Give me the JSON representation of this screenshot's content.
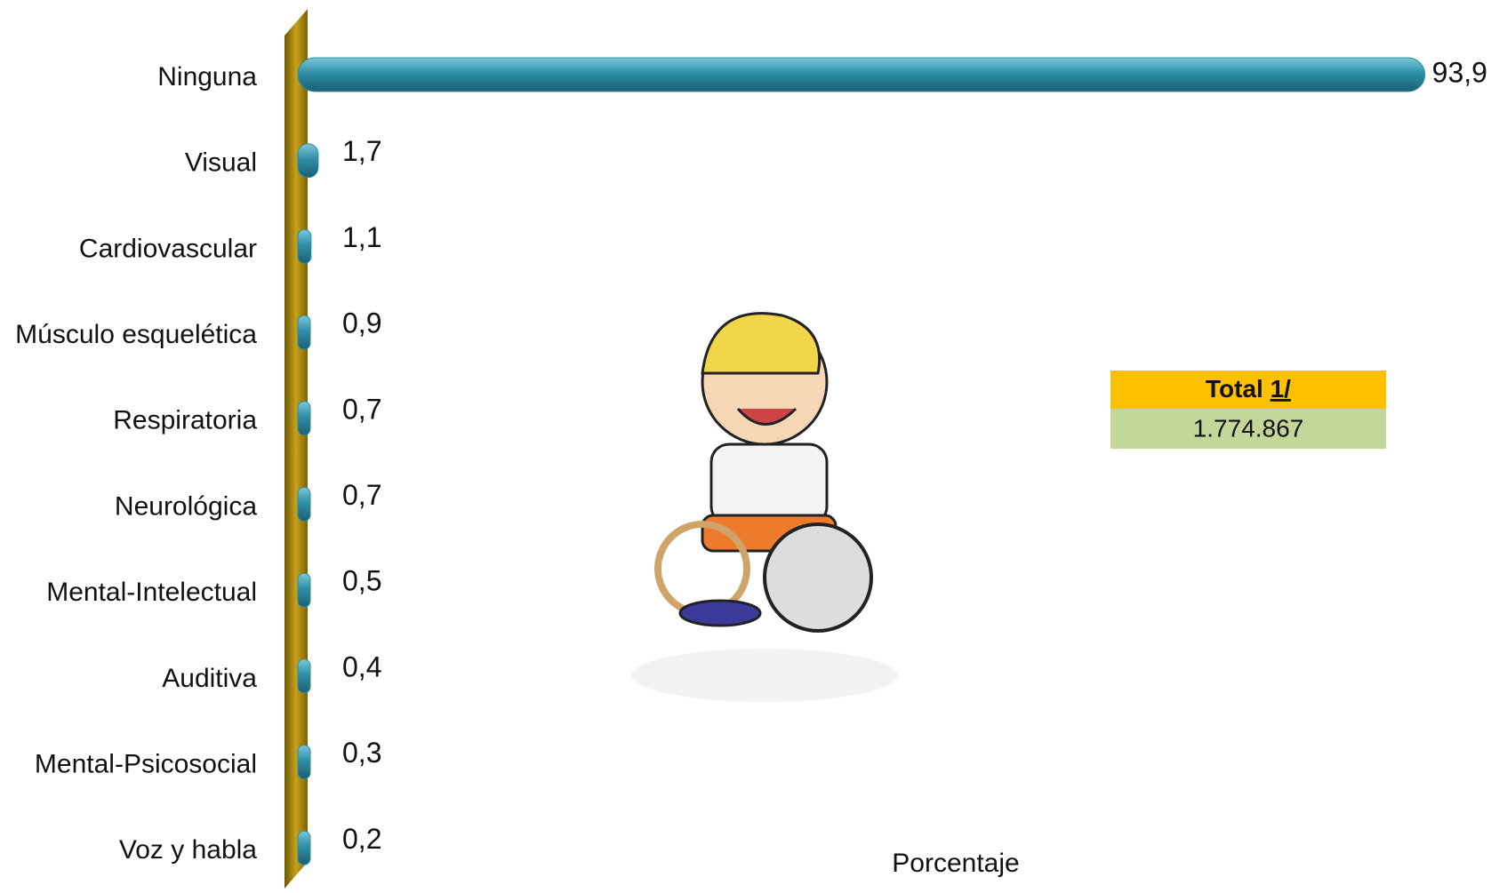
{
  "chart_data": {
    "type": "bar",
    "orientation": "horizontal",
    "categories": [
      "Ninguna",
      "Visual",
      "Cardiovascular",
      "Músculo esquelética",
      "Respiratoria",
      "Neurológica",
      "Mental-Intelectual",
      "Auditiva",
      "Mental-Psicosocial",
      "Voz y habla"
    ],
    "values": [
      93.9,
      1.7,
      1.1,
      0.9,
      0.7,
      0.7,
      0.5,
      0.4,
      0.3,
      0.2
    ],
    "value_labels": [
      "93,9",
      "1,7",
      "1,1",
      "0,9",
      "0,7",
      "0,7",
      "0,5",
      "0,4",
      "0,3",
      "0,2"
    ],
    "color": "#2f8fa9",
    "xlim": [
      0,
      100
    ],
    "xlabel": "Porcentaje"
  },
  "total": {
    "label": "Total",
    "note": "1/",
    "value": "1.774.867"
  }
}
